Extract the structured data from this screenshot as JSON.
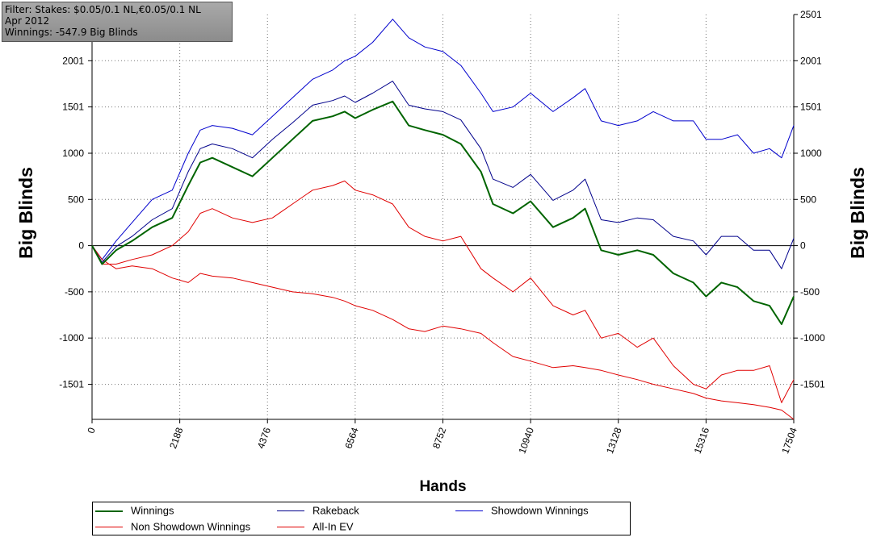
{
  "filter": {
    "line1": "Filter: Stakes: $0.05/0.1 NL,€0.05/0.1 NL",
    "line2": "Apr 2012",
    "line3": "Winnings: -547.9 Big Blinds"
  },
  "legend": {
    "winnings": "Winnings",
    "rakeback": "Rakeback",
    "showdown": "Showdown Winnings",
    "non_showdown": "Non Showdown Winnings",
    "allin_ev": "All-In EV"
  },
  "colors": {
    "winnings": "#006400",
    "rakeback": "#00008b",
    "showdown": "#0000cd",
    "non_showdown": "#e00000",
    "allin_ev": "#e00000",
    "grid": "#777777"
  },
  "chart_data": {
    "type": "line",
    "xlabel": "Hands",
    "ylabel": "Big Blinds",
    "xlim": [
      0,
      17504
    ],
    "ylim": [
      -1880,
      2501
    ],
    "x_ticks": [
      "0",
      "2188",
      "4376",
      "6564",
      "8752",
      "10940",
      "13128",
      "15316",
      "17504"
    ],
    "y_ticks_left": [
      "2001",
      "1501",
      "1000",
      "500",
      "0",
      "-500",
      "-1000",
      "-1501"
    ],
    "y_ticks_right": [
      "2501",
      "2001",
      "1501",
      "1000",
      "500",
      "0",
      "-500",
      "-1000",
      "-1501"
    ],
    "grid": true,
    "legend_position": "bottom",
    "x": [
      0,
      250,
      600,
      1000,
      1500,
      2000,
      2400,
      2700,
      3000,
      3500,
      4000,
      4500,
      5000,
      5500,
      6000,
      6300,
      6564,
      7000,
      7500,
      7900,
      8300,
      8752,
      9200,
      9700,
      10000,
      10500,
      10940,
      11500,
      12000,
      12300,
      12700,
      13128,
      13600,
      14000,
      14500,
      15000,
      15316,
      15700,
      16100,
      16500,
      16900,
      17200,
      17504
    ],
    "series": [
      {
        "name": "Winnings",
        "values": [
          0,
          -200,
          -50,
          50,
          200,
          300,
          650,
          900,
          950,
          850,
          750,
          950,
          1150,
          1350,
          1400,
          1450,
          1380,
          1470,
          1560,
          1300,
          1250,
          1200,
          1100,
          800,
          450,
          350,
          480,
          200,
          300,
          400,
          -50,
          -100,
          -50,
          -100,
          -300,
          -400,
          -550,
          -400,
          -450,
          -600,
          -650,
          -850,
          -550
        ]
      },
      {
        "name": "Rakeback",
        "values": [
          0,
          -180,
          -10,
          100,
          280,
          400,
          800,
          1050,
          1100,
          1050,
          950,
          1150,
          1330,
          1520,
          1570,
          1620,
          1550,
          1650,
          1780,
          1520,
          1480,
          1450,
          1360,
          1050,
          720,
          630,
          770,
          490,
          600,
          720,
          280,
          250,
          300,
          280,
          100,
          50,
          -100,
          100,
          100,
          -50,
          -50,
          -250,
          80
        ]
      },
      {
        "name": "Showdown Winnings",
        "values": [
          0,
          -150,
          50,
          250,
          500,
          600,
          1000,
          1250,
          1300,
          1270,
          1200,
          1400,
          1600,
          1800,
          1900,
          2000,
          2050,
          2200,
          2450,
          2250,
          2150,
          2100,
          1950,
          1650,
          1450,
          1500,
          1650,
          1450,
          1600,
          1700,
          1350,
          1300,
          1350,
          1450,
          1350,
          1350,
          1150,
          1150,
          1200,
          1000,
          1050,
          950,
          1300
        ]
      },
      {
        "name": "Non Showdown Winnings",
        "values": [
          0,
          -150,
          -250,
          -220,
          -250,
          -350,
          -400,
          -300,
          -330,
          -350,
          -400,
          -450,
          -500,
          -520,
          -560,
          -600,
          -650,
          -700,
          -800,
          -900,
          -930,
          -870,
          -900,
          -950,
          -1050,
          -1200,
          -1250,
          -1320,
          -1300,
          -1320,
          -1350,
          -1400,
          -1450,
          -1500,
          -1550,
          -1600,
          -1650,
          -1680,
          -1700,
          -1720,
          -1750,
          -1780,
          -1880
        ]
      },
      {
        "name": "All-In EV",
        "values": [
          0,
          -200,
          -200,
          -150,
          -100,
          0,
          150,
          350,
          400,
          300,
          250,
          300,
          450,
          600,
          650,
          700,
          600,
          550,
          450,
          200,
          100,
          50,
          100,
          -250,
          -350,
          -500,
          -350,
          -650,
          -750,
          -700,
          -1000,
          -950,
          -1100,
          -1000,
          -1300,
          -1500,
          -1550,
          -1400,
          -1350,
          -1350,
          -1300,
          -1700,
          -1450
        ]
      }
    ]
  }
}
